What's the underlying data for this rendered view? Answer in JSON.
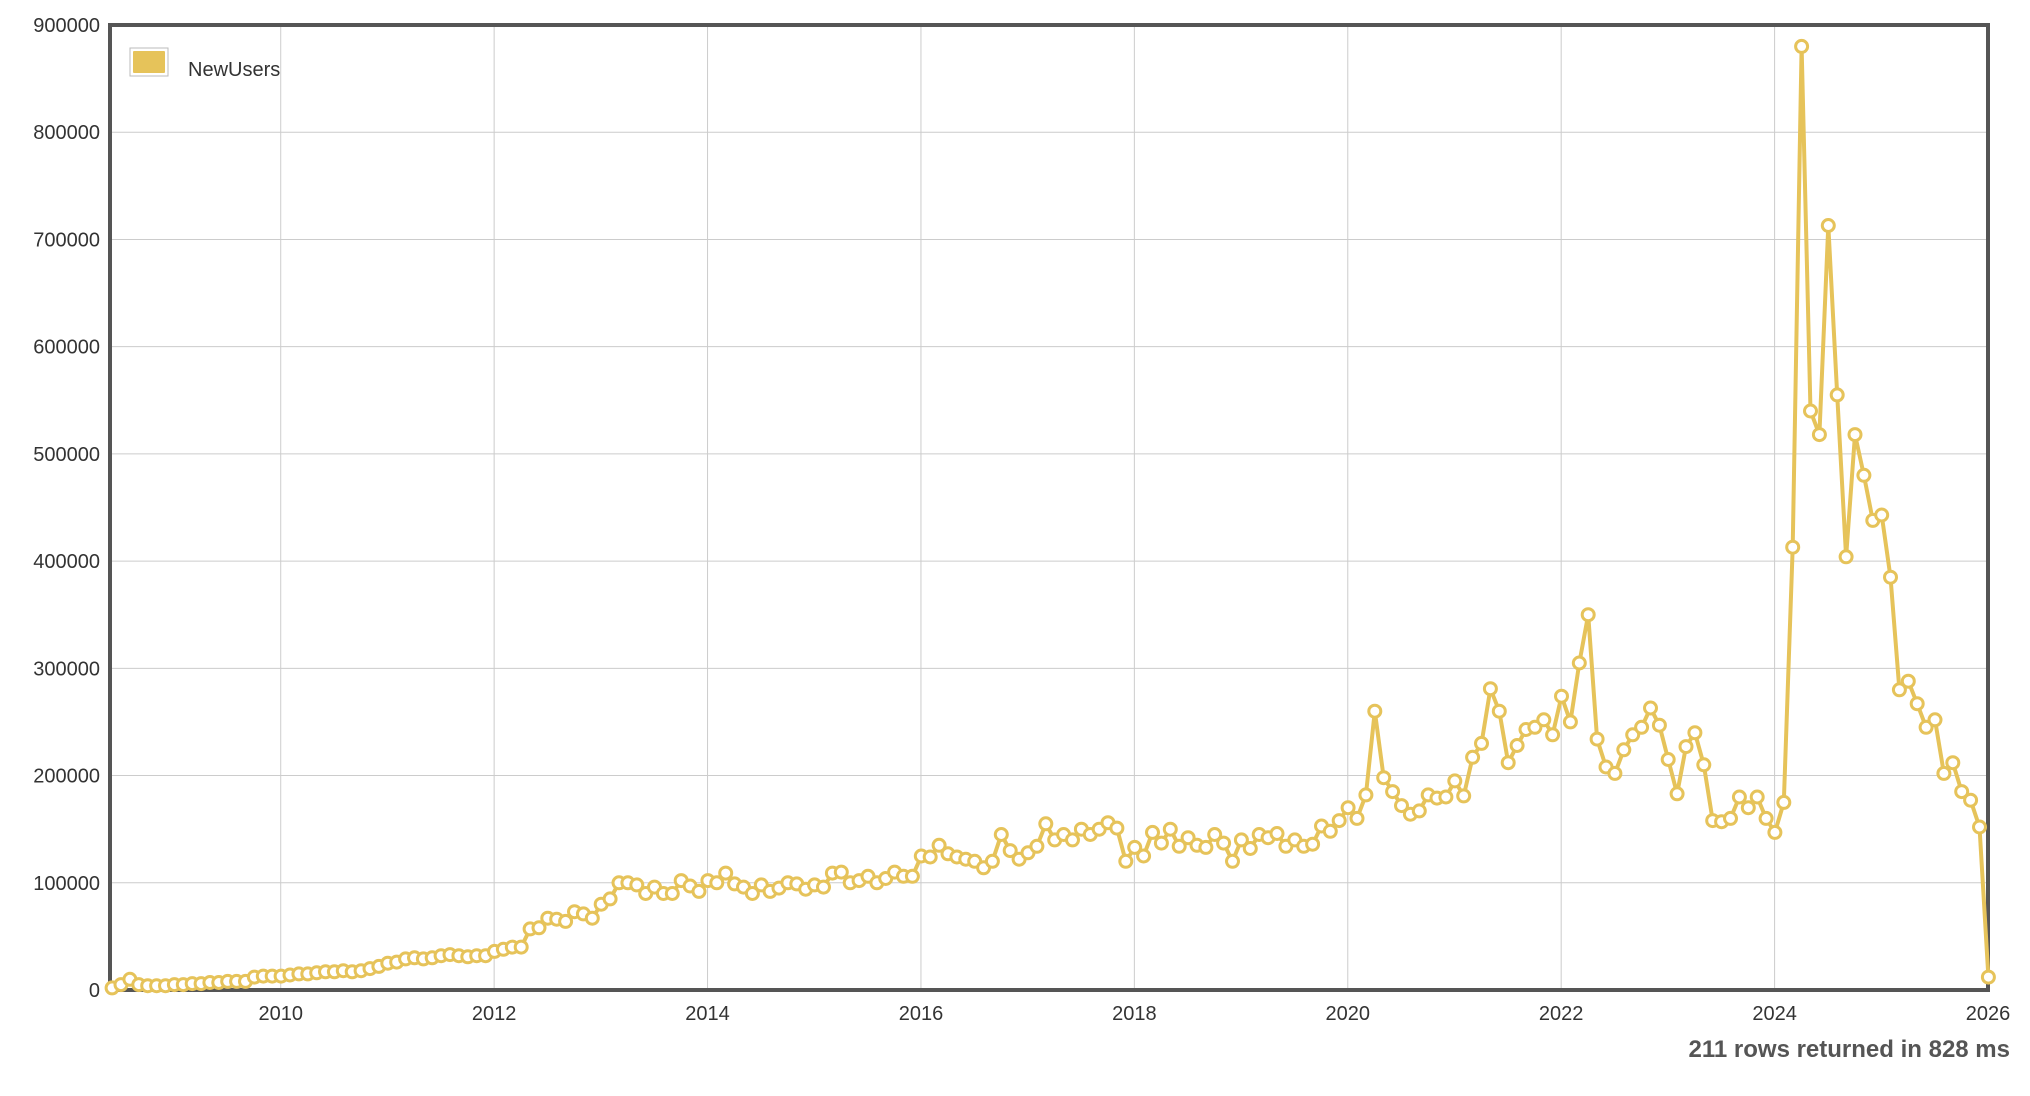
{
  "chart_data": {
    "type": "line",
    "title": "",
    "xlabel": "",
    "ylabel": "",
    "xlim": [
      2008.4,
      2026.0
    ],
    "ylim": [
      0,
      900000
    ],
    "x_ticks": [
      2010,
      2012,
      2014,
      2016,
      2018,
      2020,
      2022,
      2024,
      2026
    ],
    "y_ticks": [
      0,
      100000,
      200000,
      300000,
      400000,
      500000,
      600000,
      700000,
      800000,
      900000
    ],
    "grid": true,
    "legend_position": "top-left",
    "series": [
      {
        "name": "NewUsers",
        "color": "#e6c35a",
        "x_start": 2008.42,
        "x_step_months": 1,
        "values": [
          2000,
          5000,
          10000,
          5000,
          4000,
          4000,
          4000,
          5000,
          5000,
          6000,
          6000,
          7000,
          7000,
          8000,
          8000,
          8000,
          12000,
          13000,
          13000,
          13000,
          14000,
          15000,
          15000,
          16000,
          17000,
          17000,
          18000,
          17000,
          18000,
          20000,
          22000,
          25000,
          26000,
          29000,
          30000,
          29000,
          30000,
          32000,
          33000,
          32000,
          31000,
          32000,
          32000,
          36000,
          38000,
          40000,
          40000,
          57000,
          58000,
          67000,
          66000,
          64000,
          73000,
          71000,
          67000,
          80000,
          85000,
          100000,
          100000,
          98000,
          90000,
          96000,
          90000,
          90000,
          102000,
          97000,
          92000,
          102000,
          100000,
          109000,
          99000,
          96000,
          90000,
          98000,
          92000,
          95000,
          100000,
          99000,
          94000,
          98000,
          96000,
          109000,
          110000,
          100000,
          102000,
          106000,
          100000,
          104000,
          110000,
          106000,
          106000,
          125000,
          124000,
          135000,
          127000,
          124000,
          122000,
          120000,
          114000,
          120000,
          145000,
          130000,
          122000,
          128000,
          134000,
          155000,
          140000,
          145000,
          140000,
          150000,
          145000,
          150000,
          156000,
          151000,
          120000,
          133000,
          125000,
          147000,
          137000,
          150000,
          134000,
          142000,
          135000,
          133000,
          145000,
          137000,
          120000,
          140000,
          132000,
          145000,
          142000,
          146000,
          134000,
          140000,
          134000,
          136000,
          153000,
          148000,
          158000,
          170000,
          160000,
          182000,
          260000,
          198000,
          185000,
          172000,
          164000,
          167000,
          182000,
          179000,
          180000,
          195000,
          181000,
          217000,
          230000,
          281000,
          260000,
          212000,
          228000,
          243000,
          245000,
          252000,
          238000,
          274000,
          250000,
          305000,
          350000,
          234000,
          208000,
          202000,
          224000,
          238000,
          245000,
          263000,
          247000,
          215000,
          183000,
          227000,
          240000,
          210000,
          158000,
          157000,
          160000,
          180000,
          170000,
          180000,
          160000,
          147000,
          175000,
          413000,
          880000,
          540000,
          518000,
          713000,
          555000,
          404000,
          518000,
          480000,
          438000,
          443000,
          385000,
          280000,
          288000,
          267000,
          245000,
          252000,
          202000,
          212000,
          185000,
          177000,
          152000,
          12000
        ]
      }
    ]
  },
  "legend": {
    "label": "NewUsers",
    "color": "#e6c35a"
  },
  "status": {
    "text": "211 rows returned in 828 ms"
  }
}
